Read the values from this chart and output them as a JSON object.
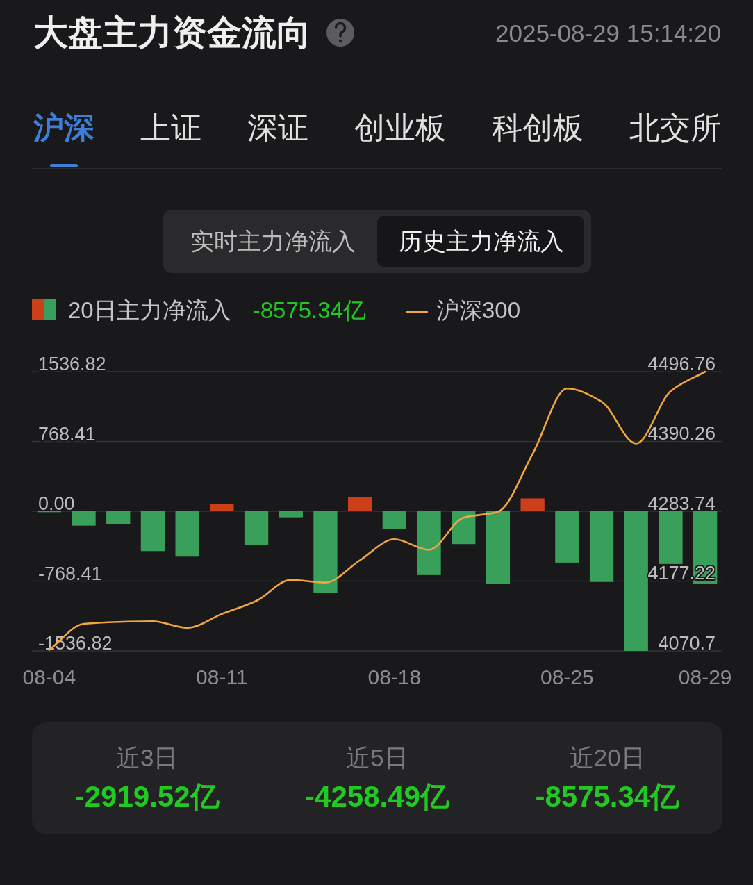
{
  "chart_data": [
    {
      "type": "other",
      "title": "大盘主力资金流向",
      "subtitle": "2025-08-29 15:14:20"
    },
    {
      "type": "other",
      "annotations": [
        "沪深",
        "上证",
        "深证",
        "创业板",
        "科创板",
        "北交所"
      ]
    },
    {
      "type": "other",
      "annotations": [
        "实时主力净流入",
        "历史主力净流入"
      ]
    },
    {
      "type": "bar",
      "categories": [
        "08-04",
        null,
        null,
        null,
        null,
        "08-11",
        null,
        null,
        null,
        null,
        "08-18",
        null,
        null,
        null,
        null,
        "08-25",
        null,
        null,
        null,
        "08-29"
      ],
      "series": [
        {
          "name": "20日主力净流入",
          "type": "bar",
          "colors": [
            "#39a05c",
            "#39a05c",
            "#39a05c",
            "#39a05c",
            "#39a05c",
            "#cc4019",
            "#39a05c",
            "#39a05c",
            "#39a05c",
            "#cc4019",
            "#39a05c",
            "#39a05c",
            "#39a05c",
            "#39a05c",
            "#cc4019",
            "#39a05c",
            "#39a05c",
            "#39a05c",
            "#39a05c",
            "#39a05c"
          ],
          "values": [
            -10,
            -158,
            -138,
            -438,
            -499,
            82,
            -375,
            -66,
            -897,
            153,
            -191,
            -702,
            -361,
            -796,
            142,
            -565,
            -778,
            -1536.82,
            -580,
            -795
          ]
        },
        {
          "name": "沪深300",
          "type": "line",
          "axis": "y2",
          "color": "#f2a640",
          "values": [
            4072,
            4112,
            4115,
            4116,
            4106,
            4127,
            4147,
            4179,
            4175,
            4209,
            4241,
            4225,
            4274,
            4283,
            4371,
            4471,
            4451,
            4387,
            4467,
            4496.76
          ]
        }
      ],
      "ylim": [
        -1536.82,
        1536.82
      ],
      "yticks": [
        -1536.82,
        -768.41,
        {
          "value": 0,
          "label": "0.00"
        },
        768.41,
        1536.82
      ],
      "y2lim": [
        4070.7,
        4496.76
      ],
      "y2ticks": [
        4070.7,
        4177.22,
        4283.74,
        4390.26,
        4496.76
      ],
      "grid": "y",
      "legend": "top left",
      "annotations": [
        "-8575.34亿"
      ]
    },
    {
      "type": "other",
      "annotations": [
        "近3日",
        "-2919.52亿",
        "近5日",
        "-4258.49亿",
        "近20日",
        "-8575.34亿"
      ]
    }
  ]
}
